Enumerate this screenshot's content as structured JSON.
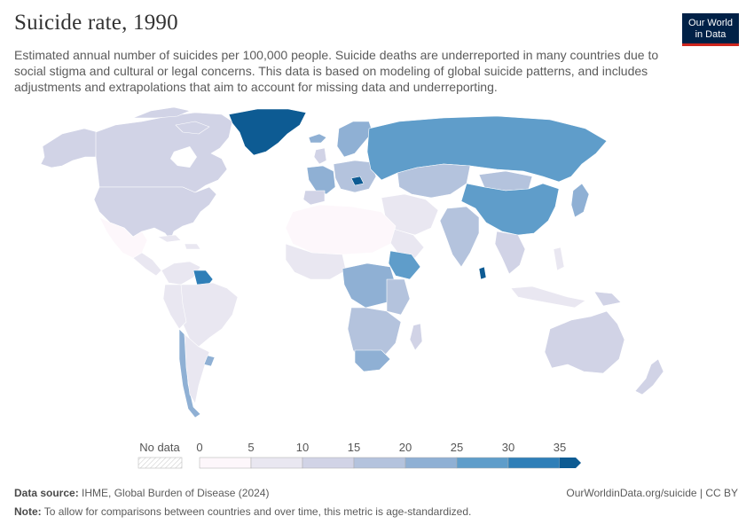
{
  "header": {
    "title": "Suicide rate, 1990",
    "subtitle": "Estimated annual number of suicides per 100,000 people. Suicide deaths are underreported in many countries due to social stigma and cultural or legal concerns. This data is based on modeling of global suicide patterns, and includes adjustments and extrapolations that aim to account for missing data and underreporting."
  },
  "logo": {
    "line1": "Our World",
    "line2": "in Data"
  },
  "legend": {
    "no_data_label": "No data",
    "ticks": [
      "0",
      "5",
      "10",
      "15",
      "20",
      "25",
      "30",
      "35"
    ],
    "bin_colors": [
      "#fdf7fb",
      "#e9e7f1",
      "#d1d3e6",
      "#b4c3dd",
      "#8fb0d4",
      "#5f9dca",
      "#2f7fb8",
      "#0d5b93"
    ],
    "arrow_color": "#0d5b93"
  },
  "footer": {
    "source_label": "Data source:",
    "source_text": " IHME, Global Burden of Disease (2024)",
    "url_text": "OurWorldinData.org/suicide | CC BY",
    "note_label": "Note:",
    "note_text": " To allow for comparisons between countries and over time, this metric is age-standardized."
  },
  "map_colors": {
    "very_low": "#fdf7fb",
    "low": "#e9e7f1",
    "low_mid": "#d1d3e6",
    "mid": "#b4c3dd",
    "mid_high": "#8fb0d4",
    "high": "#5f9dca",
    "very_high": "#2f7fb8",
    "extreme": "#0d5b93",
    "border": "#ffffff"
  }
}
